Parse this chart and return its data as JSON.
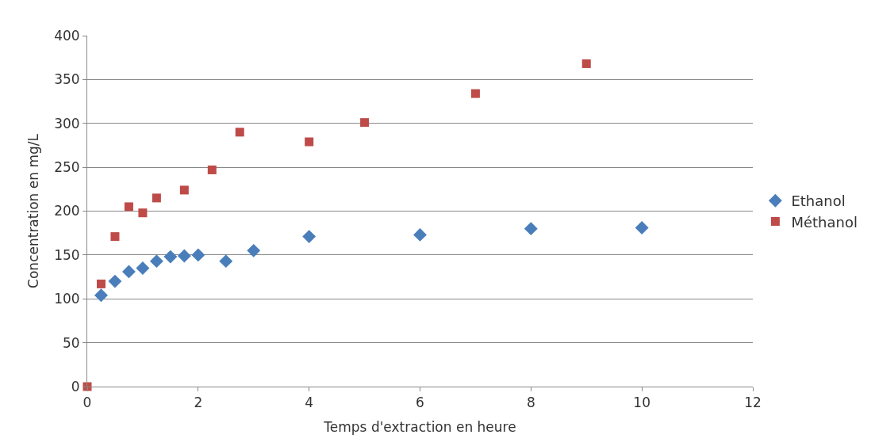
{
  "chart_data": {
    "type": "scatter",
    "xlabel": "Temps d'extraction en heure",
    "ylabel": "Concentration en mg/L",
    "xlim": [
      0,
      12
    ],
    "xticks": [
      0,
      2,
      4,
      6,
      8,
      10,
      12
    ],
    "ylim": [
      0,
      400
    ],
    "yticks": [
      0,
      50,
      100,
      150,
      200,
      250,
      300,
      350,
      400
    ],
    "grid": "y",
    "legend": "right",
    "series": [
      {
        "name": "Ethanol",
        "color": "#4a7ebb",
        "marker": "diamond",
        "x": [
          0.25,
          0.5,
          0.75,
          1,
          1.25,
          1.5,
          1.75,
          2,
          2.5,
          3,
          4,
          6,
          8,
          10
        ],
        "values": [
          104,
          120,
          131,
          135,
          143,
          148,
          149,
          150,
          143,
          155,
          171,
          173,
          180,
          181
        ]
      },
      {
        "name": "Méthanol",
        "color": "#be4b48",
        "marker": "square",
        "x": [
          0,
          0.25,
          0.5,
          0.75,
          1,
          1.25,
          1.75,
          2.25,
          2.75,
          4,
          5,
          7,
          9
        ],
        "values": [
          0,
          117,
          171,
          205,
          198,
          215,
          224,
          247,
          290,
          279,
          301,
          334,
          368
        ]
      }
    ]
  }
}
